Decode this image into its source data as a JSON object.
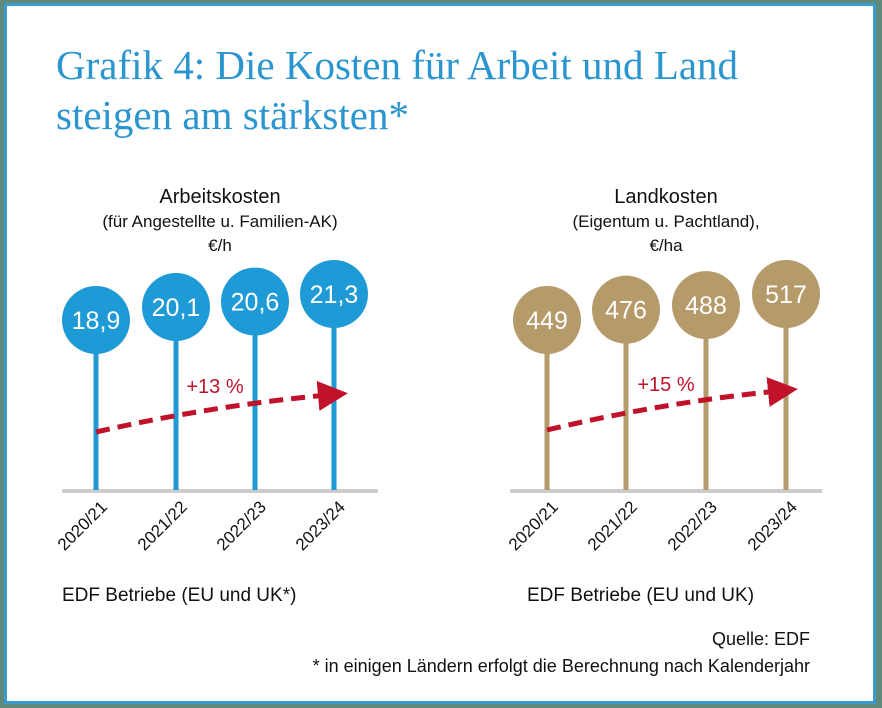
{
  "title_line1": "Grafik 4: Die Kosten für Arbeit und Land",
  "title_line2": "steigen am stärksten*",
  "chart_data": [
    {
      "type": "lollipop",
      "title": "Arbeitskosten",
      "subtitle": "(für Angestellte u. Familien-AK)",
      "unit": "€/h",
      "categories": [
        "2020/21",
        "2021/22",
        "2022/23",
        "2023/24"
      ],
      "values": [
        18.9,
        20.1,
        20.6,
        21.3
      ],
      "value_labels": [
        "18,9",
        "20,1",
        "20,6",
        "21,3"
      ],
      "trend_label": "+13 %",
      "caption": "EDF Betriebe (EU und UK*)",
      "color": "#1e9ad6"
    },
    {
      "type": "lollipop",
      "title": "Landkosten",
      "subtitle": "(Eigentum u. Pachtland),",
      "unit": "€/ha",
      "categories": [
        "2020/21",
        "2021/22",
        "2022/23",
        "2023/24"
      ],
      "values": [
        449,
        476,
        488,
        517
      ],
      "value_labels": [
        "449",
        "476",
        "488",
        "517"
      ],
      "trend_label": "+15 %",
      "caption": "EDF Betriebe (EU und UK)",
      "color": "#b59a6a"
    }
  ],
  "trend_color": "#c0132b",
  "source": "Quelle: EDF",
  "footnote": "* in einigen Ländern erfolgt die Berechnung nach Kalenderjahr"
}
